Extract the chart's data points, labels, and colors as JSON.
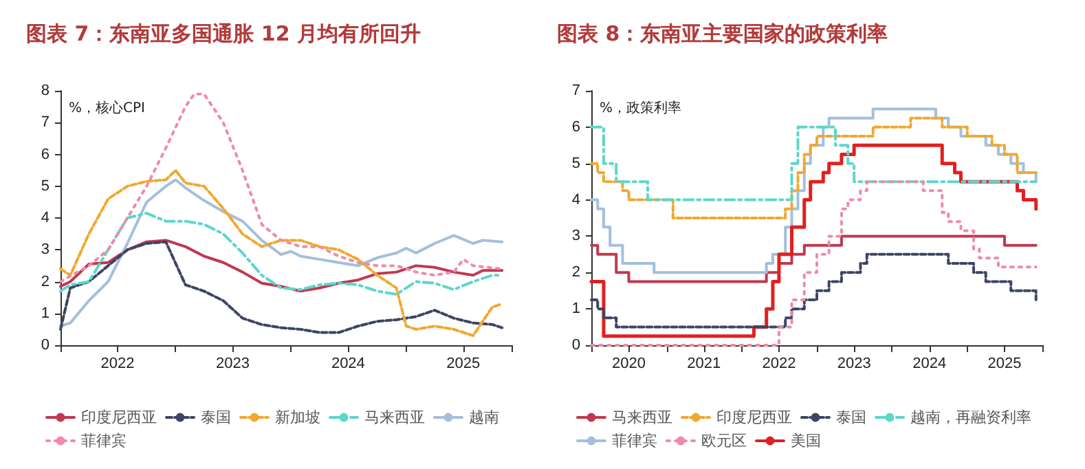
{
  "chart_data": [
    {
      "type": "line",
      "title": "图表 7：东南亚多国通胀 12 月均有所回升",
      "ylabel": "%，核心CPI",
      "xlim": [
        "2022-01",
        "2025-12"
      ],
      "xticks": [
        {
          "value": "2022-01",
          "label": null
        },
        {
          "value": "2022-07",
          "label": "2022"
        },
        {
          "value": "2023-01",
          "label": null
        },
        {
          "value": "2023-07",
          "label": "2023"
        },
        {
          "value": "2024-01",
          "label": null
        },
        {
          "value": "2024-07",
          "label": "2024"
        },
        {
          "value": "2025-01",
          "label": null
        },
        {
          "value": "2025-07",
          "label": "2025"
        },
        {
          "value": "2025-12",
          "label": null
        }
      ],
      "ylim": [
        0,
        8
      ],
      "yticks": [
        0,
        1,
        2,
        3,
        4,
        5,
        6,
        7,
        8
      ],
      "grid": false,
      "legend": "bottom",
      "marker": "none",
      "series": [
        {
          "name": "印度尼西亚",
          "color": "#c0394f",
          "line_style": "solid",
          "x": [
            "2022-01",
            "2022-02",
            "2022-04",
            "2022-06",
            "2022-08",
            "2022-10",
            "2022-12",
            "2023-02",
            "2023-04",
            "2023-06",
            "2023-08",
            "2023-10",
            "2023-12",
            "2024-02",
            "2024-04",
            "2024-06",
            "2024-08",
            "2024-10",
            "2024-12",
            "2025-02",
            "2025-04",
            "2025-06",
            "2025-08",
            "2025-09",
            "2025-11"
          ],
          "values": [
            1.85,
            2.0,
            2.55,
            2.6,
            3.0,
            3.25,
            3.3,
            3.1,
            2.8,
            2.6,
            2.3,
            1.95,
            1.85,
            1.7,
            1.8,
            1.95,
            2.05,
            2.25,
            2.3,
            2.5,
            2.45,
            2.3,
            2.2,
            2.35,
            2.35
          ]
        },
        {
          "name": "泰国",
          "color": "#3d4563",
          "line_style": "dashed",
          "x": [
            "2022-01",
            "2022-02",
            "2022-04",
            "2022-06",
            "2022-08",
            "2022-10",
            "2022-12",
            "2023-02",
            "2023-04",
            "2023-06",
            "2023-08",
            "2023-10",
            "2023-12",
            "2024-02",
            "2024-04",
            "2024-06",
            "2024-08",
            "2024-10",
            "2024-12",
            "2025-02",
            "2025-04",
            "2025-06",
            "2025-08",
            "2025-10",
            "2025-11"
          ],
          "values": [
            0.5,
            1.8,
            2.0,
            2.5,
            3.0,
            3.2,
            3.25,
            1.9,
            1.7,
            1.4,
            0.85,
            0.65,
            0.55,
            0.5,
            0.4,
            0.4,
            0.6,
            0.75,
            0.8,
            0.9,
            1.1,
            0.85,
            0.7,
            0.65,
            0.55
          ]
        },
        {
          "name": "新加坡",
          "color": "#f0a830",
          "line_style": "dashed",
          "x": [
            "2022-01",
            "2022-02",
            "2022-04",
            "2022-06",
            "2022-08",
            "2022-10",
            "2022-12",
            "2023-01",
            "2023-02",
            "2023-04",
            "2023-06",
            "2023-08",
            "2023-10",
            "2023-12",
            "2024-02",
            "2024-04",
            "2024-06",
            "2024-08",
            "2024-10",
            "2024-12",
            "2025-01",
            "2025-02",
            "2025-04",
            "2025-06",
            "2025-08",
            "2025-10",
            "2025-11"
          ],
          "values": [
            2.4,
            2.2,
            3.5,
            4.6,
            5.0,
            5.15,
            5.2,
            5.5,
            5.1,
            5.0,
            4.3,
            3.5,
            3.1,
            3.3,
            3.3,
            3.1,
            3.0,
            2.7,
            2.2,
            1.8,
            0.6,
            0.5,
            0.6,
            0.5,
            0.3,
            1.2,
            1.3
          ]
        },
        {
          "name": "马来西亚",
          "color": "#5dd6cb",
          "line_style": "dashdot",
          "x": [
            "2022-01",
            "2022-02",
            "2022-04",
            "2022-06",
            "2022-08",
            "2022-10",
            "2022-12",
            "2023-02",
            "2023-04",
            "2023-06",
            "2023-08",
            "2023-10",
            "2023-12",
            "2024-02",
            "2024-04",
            "2024-06",
            "2024-08",
            "2024-10",
            "2024-12",
            "2025-02",
            "2025-04",
            "2025-06",
            "2025-08",
            "2025-10",
            "2025-11"
          ],
          "values": [
            1.7,
            1.9,
            2.0,
            3.0,
            4.0,
            4.15,
            3.9,
            3.9,
            3.8,
            3.5,
            2.9,
            2.2,
            1.8,
            1.75,
            1.9,
            1.95,
            1.9,
            1.7,
            1.6,
            2.0,
            1.95,
            1.75,
            2.0,
            2.2,
            2.2
          ]
        },
        {
          "name": "越南",
          "color": "#a3bfdc",
          "line_style": "solid",
          "x": [
            "2022-01",
            "2022-02",
            "2022-04",
            "2022-06",
            "2022-08",
            "2022-10",
            "2022-12",
            "2023-01",
            "2023-02",
            "2023-04",
            "2023-06",
            "2023-08",
            "2023-10",
            "2023-12",
            "2024-01",
            "2024-02",
            "2024-04",
            "2024-06",
            "2024-08",
            "2024-10",
            "2024-12",
            "2025-01",
            "2025-02",
            "2025-04",
            "2025-06",
            "2025-08",
            "2025-09",
            "2025-11"
          ],
          "values": [
            0.6,
            0.7,
            1.4,
            2.0,
            3.2,
            4.5,
            5.0,
            5.2,
            4.95,
            4.55,
            4.2,
            3.9,
            3.3,
            2.85,
            2.95,
            2.8,
            2.7,
            2.6,
            2.5,
            2.75,
            2.9,
            3.05,
            2.9,
            3.2,
            3.45,
            3.2,
            3.3,
            3.25
          ]
        },
        {
          "name": "菲律宾",
          "color": "#f08aa8",
          "line_style": "dotted",
          "x": [
            "2022-01",
            "2022-04",
            "2022-06",
            "2022-08",
            "2022-10",
            "2022-12",
            "2023-02",
            "2023-03",
            "2023-04",
            "2023-06",
            "2023-08",
            "2023-10",
            "2023-12",
            "2024-02",
            "2024-04",
            "2024-06",
            "2024-08",
            "2024-10",
            "2024-12",
            "2025-02",
            "2025-04",
            "2025-06",
            "2025-07",
            "2025-08",
            "2025-11"
          ],
          "values": [
            2.0,
            2.5,
            3.0,
            4.0,
            5.0,
            6.2,
            7.5,
            7.9,
            7.9,
            7.0,
            5.5,
            3.8,
            3.3,
            3.1,
            3.1,
            2.8,
            2.6,
            2.5,
            2.5,
            2.3,
            2.2,
            2.3,
            2.7,
            2.5,
            2.4
          ]
        }
      ]
    },
    {
      "type": "step",
      "title": "图表 8：东南亚主要国家的政策利率",
      "ylabel": "%，政策利率",
      "xlim": [
        "2020-01",
        "2026-01"
      ],
      "xticks": [
        {
          "value": "2020-01",
          "label": null
        },
        {
          "value": "2020-07",
          "label": "2020"
        },
        {
          "value": "2021-01",
          "label": null
        },
        {
          "value": "2021-07",
          "label": "2021"
        },
        {
          "value": "2022-01",
          "label": null
        },
        {
          "value": "2022-07",
          "label": "2022"
        },
        {
          "value": "2023-01",
          "label": null
        },
        {
          "value": "2023-07",
          "label": "2023"
        },
        {
          "value": "2024-01",
          "label": null
        },
        {
          "value": "2024-07",
          "label": "2024"
        },
        {
          "value": "2025-01",
          "label": null
        },
        {
          "value": "2025-07",
          "label": "2025"
        },
        {
          "value": "2026-01",
          "label": null
        }
      ],
      "ylim": [
        0,
        7
      ],
      "yticks": [
        0,
        1,
        2,
        3,
        4,
        5,
        6,
        7
      ],
      "grid": false,
      "legend": "bottom",
      "marker": "none",
      "series": [
        {
          "name": "马来西亚",
          "color": "#c0394f",
          "line_style": "solid",
          "x": [
            "2020-01",
            "2020-02",
            "2020-05",
            "2020-07",
            "2022-05",
            "2022-07",
            "2022-09",
            "2022-11",
            "2023-05",
            "2025-07",
            "2025-12"
          ],
          "values": [
            2.75,
            2.5,
            2.0,
            1.75,
            2.0,
            2.25,
            2.5,
            2.75,
            3.0,
            2.75,
            2.75
          ]
        },
        {
          "name": "印度尼西亚",
          "color": "#f0a830",
          "line_style": "dashed",
          "x": [
            "2020-01",
            "2020-02",
            "2020-03",
            "2020-06",
            "2020-07",
            "2021-02",
            "2022-08",
            "2022-09",
            "2022-10",
            "2022-11",
            "2022-12",
            "2023-01",
            "2023-10",
            "2024-04",
            "2024-09",
            "2025-01",
            "2025-05",
            "2025-07",
            "2025-09",
            "2025-12"
          ],
          "values": [
            5.0,
            4.75,
            4.5,
            4.25,
            4.0,
            3.5,
            3.75,
            4.25,
            4.75,
            5.25,
            5.5,
            5.75,
            6.0,
            6.25,
            6.0,
            5.75,
            5.5,
            5.25,
            4.75,
            4.75
          ]
        },
        {
          "name": "泰国",
          "color": "#3d4563",
          "line_style": "dashed",
          "x": [
            "2020-01",
            "2020-02",
            "2020-03",
            "2020-05",
            "2022-08",
            "2022-09",
            "2022-11",
            "2023-01",
            "2023-03",
            "2023-05",
            "2023-08",
            "2023-09",
            "2024-10",
            "2025-02",
            "2025-04",
            "2025-08",
            "2025-12"
          ],
          "values": [
            1.25,
            1.0,
            0.75,
            0.5,
            0.75,
            1.0,
            1.25,
            1.5,
            1.75,
            2.0,
            2.25,
            2.5,
            2.25,
            2.0,
            1.75,
            1.5,
            1.25
          ]
        },
        {
          "name": "越南，再融资利率",
          "color": "#5dd6cb",
          "line_style": "dashdot",
          "x": [
            "2020-01",
            "2020-03",
            "2020-05",
            "2020-10",
            "2022-09",
            "2022-10",
            "2023-04",
            "2023-06",
            "2023-07",
            "2025-12"
          ],
          "values": [
            6.0,
            5.0,
            4.5,
            4.0,
            5.0,
            6.0,
            5.5,
            5.0,
            4.5,
            4.5
          ]
        },
        {
          "name": "菲律宾",
          "color": "#a3bfdc",
          "line_style": "solid",
          "x": [
            "2020-01",
            "2020-02",
            "2020-03",
            "2020-04",
            "2020-06",
            "2020-11",
            "2022-05",
            "2022-06",
            "2022-08",
            "2022-09",
            "2022-10",
            "2022-11",
            "2022-12",
            "2023-02",
            "2023-03",
            "2023-10",
            "2024-08",
            "2024-10",
            "2024-12",
            "2025-04",
            "2025-06",
            "2025-08",
            "2025-10",
            "2025-12"
          ],
          "values": [
            4.0,
            3.75,
            3.25,
            2.75,
            2.25,
            2.0,
            2.25,
            2.5,
            3.25,
            3.75,
            4.25,
            5.0,
            5.5,
            6.0,
            6.25,
            6.5,
            6.25,
            6.0,
            5.75,
            5.5,
            5.25,
            5.0,
            4.75,
            4.5
          ]
        },
        {
          "name": "欧元区",
          "color": "#f08aa8",
          "line_style": "dotted",
          "x": [
            "2020-01",
            "2022-07",
            "2022-09",
            "2022-11",
            "2023-01",
            "2023-03",
            "2023-05",
            "2023-06",
            "2023-08",
            "2023-09",
            "2024-06",
            "2024-09",
            "2024-10",
            "2024-12",
            "2025-02",
            "2025-03",
            "2025-06",
            "2025-12"
          ],
          "values": [
            0,
            0.5,
            1.25,
            2.0,
            2.5,
            3.0,
            3.75,
            4.0,
            4.25,
            4.5,
            4.25,
            3.65,
            3.4,
            3.15,
            2.65,
            2.4,
            2.15,
            2.15
          ]
        },
        {
          "name": "美国",
          "color": "#e02020",
          "line_style": "solid",
          "x": [
            "2020-01",
            "2020-03",
            "2022-03",
            "2022-05",
            "2022-06",
            "2022-07",
            "2022-09",
            "2022-11",
            "2022-12",
            "2023-02",
            "2023-03",
            "2023-05",
            "2023-07",
            "2024-09",
            "2024-11",
            "2024-12",
            "2025-09",
            "2025-10",
            "2025-12"
          ],
          "values": [
            1.75,
            0.25,
            0.5,
            1.0,
            1.75,
            2.5,
            3.25,
            4.0,
            4.5,
            4.75,
            5.0,
            5.25,
            5.5,
            5.0,
            4.75,
            4.5,
            4.25,
            4.0,
            3.75
          ]
        }
      ]
    }
  ]
}
